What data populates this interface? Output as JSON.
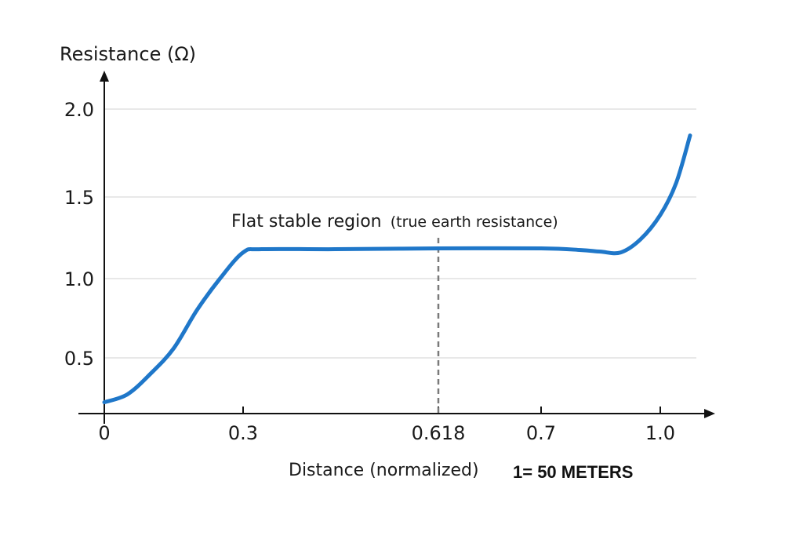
{
  "chart_data": {
    "type": "line",
    "ylabel": "Resistance (Ω)",
    "xlabel": "Distance (normalized)",
    "xlabel_note": "1= 50 METERS",
    "x_ticks": [
      0,
      0.3,
      0.618,
      0.7,
      1.0
    ],
    "x_tick_labels": [
      "0",
      "0.3",
      "0.618",
      "0.7",
      "1.0"
    ],
    "y_ticks": [
      0.5,
      1.0,
      1.5,
      2.0
    ],
    "y_tick_labels": [
      "0.5",
      "1.0",
      "1.5",
      "2.0"
    ],
    "ylim": [
      0.15,
      2.2
    ],
    "grid": "horizontal",
    "annotation": {
      "main": "Flat stable region",
      "sub": "(true earth resistance)",
      "x": 0.618
    },
    "series": [
      {
        "color": "#1f77c9",
        "x": [
          0,
          0.05,
          0.1,
          0.15,
          0.2,
          0.25,
          0.3,
          0.33,
          0.45,
          0.618,
          0.7,
          0.8,
          0.85,
          0.9,
          0.95,
          1.0,
          1.04,
          1.075
        ],
        "y": [
          0.22,
          0.27,
          0.4,
          0.56,
          0.8,
          1.0,
          1.16,
          1.18,
          1.18,
          1.185,
          1.185,
          1.175,
          1.165,
          1.16,
          1.24,
          1.39,
          1.58,
          1.85
        ]
      }
    ],
    "colors": {
      "line": "#1f77c9",
      "grid": "#d9d9d9",
      "axis": "#111111",
      "dashed": "#7a7a7a"
    }
  }
}
